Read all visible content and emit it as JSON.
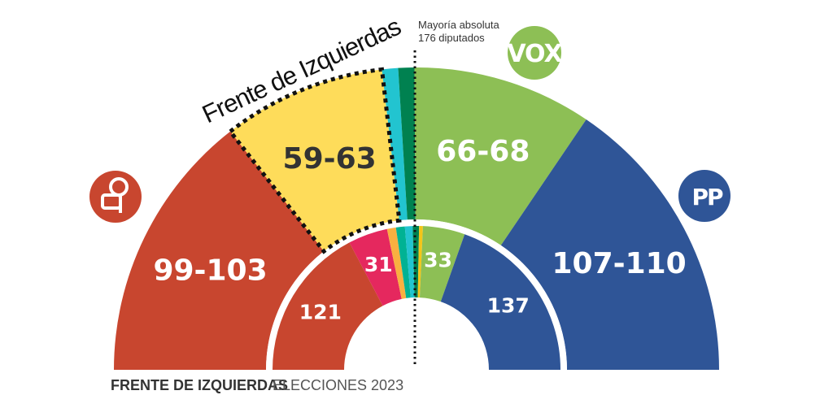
{
  "chart_data": {
    "type": "pie",
    "subtype": "hemicycle",
    "total_seats": 350,
    "majority_label": [
      "Mayoría absoluta",
      "176 diputados"
    ],
    "group_label": "Frente de Izquierdas",
    "footer": {
      "left": "FRENTE DE IZQUIERDAS",
      "right": "ELECCIONES 2023"
    },
    "outer_ring": [
      {
        "label": "99-103",
        "low": 99,
        "high": 103,
        "color": "#c8462f"
      },
      {
        "label": "59-63",
        "low": 59,
        "high": 63,
        "color": "#fedc5a",
        "dark_text": true,
        "group": true
      },
      {
        "label": "",
        "low": 6,
        "high": 6,
        "color": "#22c4d0"
      },
      {
        "label": "",
        "low": 6,
        "high": 6,
        "color": "#008150"
      },
      {
        "label": "66-68",
        "low": 66,
        "high": 68,
        "color": "#8dbf55"
      },
      {
        "label": "107-110",
        "low": 107,
        "high": 110,
        "color": "#2f5597"
      }
    ],
    "inner_ring": [
      {
        "label": "121",
        "value": 121,
        "color": "#c8462f"
      },
      {
        "label": "31",
        "value": 31,
        "color": "#e5285e"
      },
      {
        "label": "",
        "value": 7,
        "color": "#f9b040"
      },
      {
        "label": "",
        "value": 7,
        "color": "#00b294"
      },
      {
        "label": "",
        "value": 6,
        "color": "#22c4d0"
      },
      {
        "label": "",
        "value": 5,
        "color": "#008150"
      },
      {
        "label": "",
        "value": 3,
        "color": "#f5c518"
      },
      {
        "label": "33",
        "value": 33,
        "color": "#8dbf55"
      },
      {
        "label": "137",
        "value": 137,
        "color": "#2f5597"
      }
    ],
    "logos": [
      {
        "name": "psoe-logo",
        "color": "#c8462f"
      },
      {
        "name": "vox-logo",
        "text": "VOX",
        "color": "#8dbf55"
      },
      {
        "name": "pp-logo",
        "text": "PP",
        "color": "#2f5597"
      }
    ]
  }
}
